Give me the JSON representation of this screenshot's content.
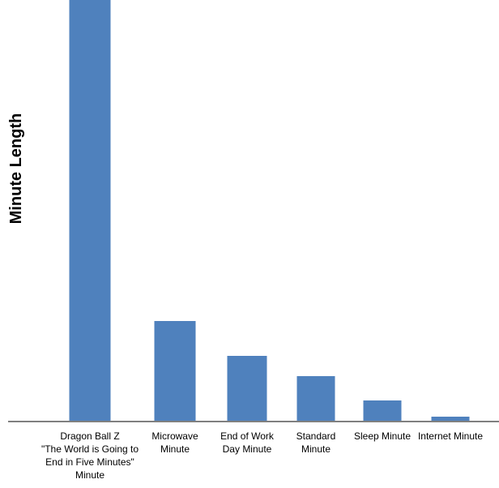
{
  "chart_data": {
    "type": "bar",
    "title": "",
    "xlabel": "",
    "ylabel": "Minute Length",
    "categories": [
      "Dragon Ball Z \"The World is Going to End in Five Minutes\" Minute",
      "Microwave Minute",
      "End of Work Day Minute",
      "Standard Minute",
      "Sleep Minute",
      "Internet Minute"
    ],
    "category_lines": [
      [
        "Dragon Ball Z",
        "\"The World is Going to",
        "End in Five Minutes\"",
        "Minute"
      ],
      [
        "Microwave",
        "Minute"
      ],
      [
        "End of Work",
        "Day Minute"
      ],
      [
        "Standard",
        "Minute"
      ],
      [
        "Sleep Minute"
      ],
      [
        "Internet Minute"
      ]
    ],
    "values": [
      520,
      124,
      81,
      56,
      26,
      6
    ],
    "ylim": [
      0,
      520
    ],
    "yticks_shown": false,
    "grid": false,
    "legend": "none",
    "bar_color": "#4f81bd",
    "axis_color": "#808080"
  }
}
